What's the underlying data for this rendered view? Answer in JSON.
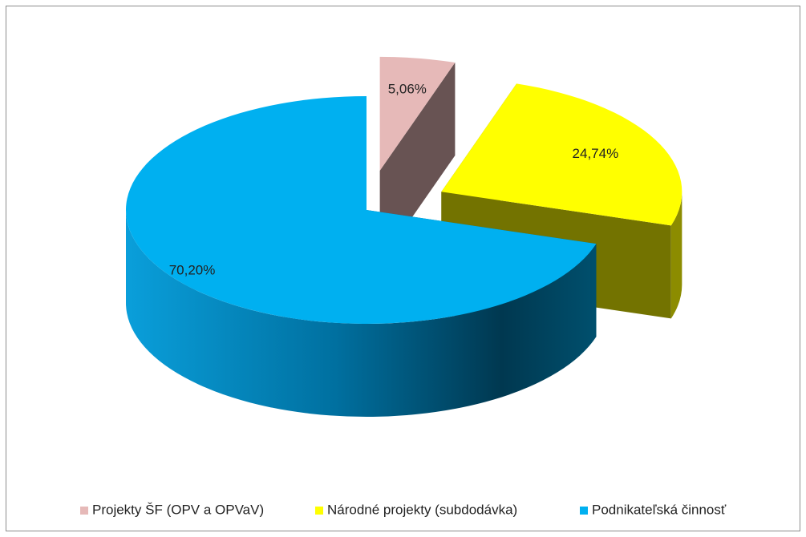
{
  "chart_data": {
    "type": "pie3d",
    "categories": [
      "Projekty ŠF (OPV a OPVaV)",
      "Národné projekty (subdodávka)",
      "Podnikateľská činnosť"
    ],
    "values": [
      5.06,
      24.74,
      70.2
    ],
    "value_labels": [
      "5,06%",
      "24,74%",
      "70,20%"
    ],
    "colors": [
      "#e6b9b8",
      "#ffff00",
      "#00b0f0"
    ],
    "legend": "bottom"
  }
}
